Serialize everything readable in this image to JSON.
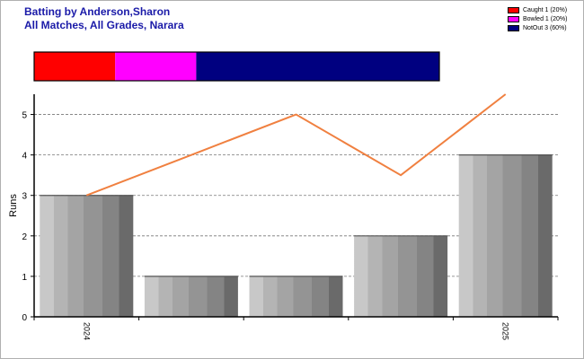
{
  "header": {
    "title_line1": "Batting by Anderson,Sharon",
    "title_line2": "All Matches, All Grades, Narara"
  },
  "legend": {
    "items": [
      {
        "label": "Caught 1 (20%)",
        "color": "#ff0000"
      },
      {
        "label": "Bowled 1 (20%)",
        "color": "#ff00ff"
      },
      {
        "label": "NotOut 3 (60%)",
        "color": "#000080"
      }
    ]
  },
  "chart_data": {
    "type": "bar",
    "ylabel": "Runs",
    "ylim": [
      0,
      5.5
    ],
    "yticks": [
      0,
      1,
      2,
      3,
      4,
      5
    ],
    "grid": true,
    "bar_values": [
      3,
      1,
      1,
      2,
      4
    ],
    "line_values": [
      3,
      4,
      5,
      3.5,
      5.5
    ],
    "line_color": "#f08040",
    "x_tick_labels": [
      "2024",
      "",
      "",
      "",
      "2025"
    ],
    "dismissal_bar": [
      {
        "name": "Caught",
        "fraction": 0.2,
        "color": "#ff0000"
      },
      {
        "name": "Bowled",
        "fraction": 0.2,
        "color": "#ff00ff"
      },
      {
        "name": "NotOut",
        "fraction": 0.6,
        "color": "#000080"
      }
    ]
  }
}
